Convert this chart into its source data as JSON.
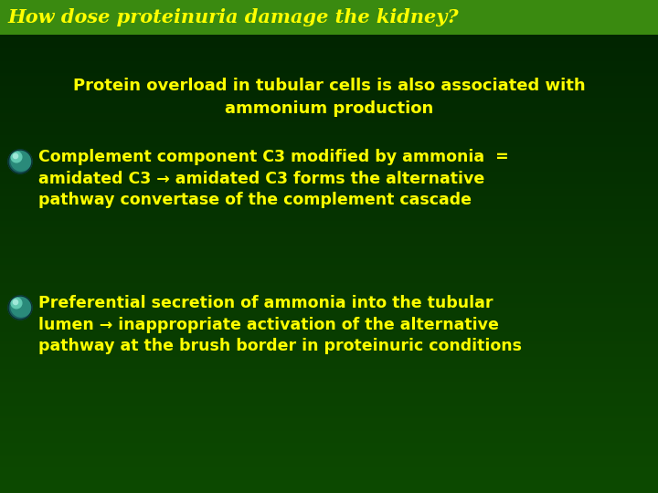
{
  "title": "How dose proteinuria damage the kidney?",
  "title_bg": "#3a8a10",
  "slide_bg_top": "#0d4a00",
  "slide_bg_bottom": "#002200",
  "title_color": "#ffff00",
  "text_color": "#ffff00",
  "subtitle_line1": "Protein overload in tubular cells is also associated with",
  "subtitle_line2": "ammonium production",
  "bullet1_line1": "Complement component C3 modified by ammonia  =",
  "bullet1_line2": "amidated C3 → amidated C3 forms the alternative",
  "bullet1_line3": "pathway convertase of the complement cascade",
  "bullet2_line1": "Preferential secretion of ammonia into the tubular",
  "bullet2_line2": "lumen → inappropriate activation of the alternative",
  "bullet2_line3": "pathway at the brush border in proteinuric conditions",
  "title_fontsize": 15,
  "subtitle_fontsize": 13,
  "bullet_fontsize": 12.5
}
